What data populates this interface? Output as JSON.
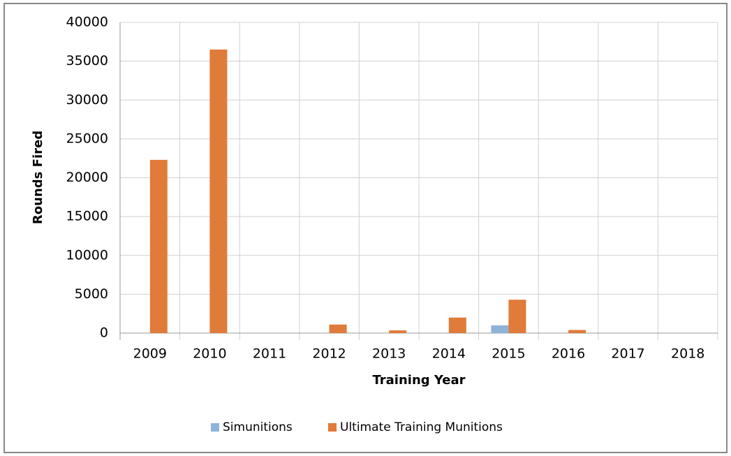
{
  "chart_data": {
    "type": "bar",
    "x_label": "Training Year",
    "y_label": "Rounds Fired",
    "categories": [
      "2009",
      "2010",
      "2011",
      "2012",
      "2013",
      "2014",
      "2015",
      "2016",
      "2017",
      "2018"
    ],
    "series": [
      {
        "name": "Simunitions",
        "color": "#8eb4d8",
        "values": [
          0,
          0,
          0,
          0,
          0,
          0,
          1000,
          0,
          0,
          0
        ]
      },
      {
        "name": "Ultimate Training Munitions",
        "color": "#e07b39",
        "values": [
          22300,
          36500,
          0,
          1100,
          350,
          2000,
          4300,
          400,
          0,
          0
        ]
      }
    ],
    "ylim": [
      0,
      40000
    ],
    "yticks": [
      0,
      5000,
      10000,
      15000,
      20000,
      25000,
      30000,
      35000,
      40000
    ],
    "grid": true,
    "legend": "bottom"
  }
}
